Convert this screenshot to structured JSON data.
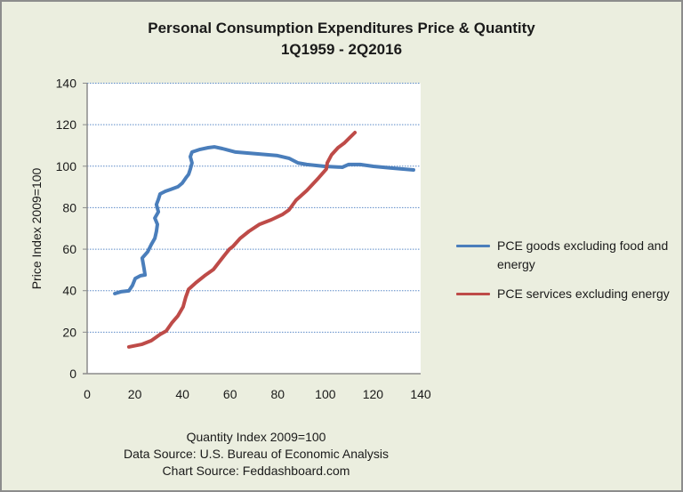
{
  "chart_data": {
    "type": "line",
    "title": "Personal Consumption  Expenditures Price & Quantity",
    "subtitle": "1Q1959 - 2Q2016",
    "xlabel": "Quantity Index 2009=100",
    "ylabel": "Price Index 2009=100",
    "xlim": [
      0,
      140
    ],
    "ylim": [
      0,
      140
    ],
    "x_ticks": [
      "0",
      "20",
      "40",
      "60",
      "80",
      "100",
      "120",
      "140"
    ],
    "y_ticks": [
      "0",
      "20",
      "40",
      "60",
      "80",
      "100",
      "120",
      "140"
    ],
    "grid": "horizontal-dotted",
    "legend_position": "right",
    "series": [
      {
        "name": "PCE goods excluding food and energy",
        "color": "#4a7ebb",
        "points": [
          [
            11.6,
            38.6
          ],
          [
            14.2,
            39.5
          ],
          [
            17.5,
            39.9
          ],
          [
            19.0,
            42.5
          ],
          [
            20.2,
            45.9
          ],
          [
            22.4,
            47.2
          ],
          [
            24.3,
            47.6
          ],
          [
            23.9,
            50.6
          ],
          [
            23.1,
            55.7
          ],
          [
            25.4,
            58.7
          ],
          [
            26.9,
            62.2
          ],
          [
            28.4,
            65.2
          ],
          [
            29.1,
            68.6
          ],
          [
            29.5,
            72.0
          ],
          [
            28.4,
            75.0
          ],
          [
            29.9,
            78.0
          ],
          [
            29.1,
            81.5
          ],
          [
            29.9,
            84.0
          ],
          [
            30.6,
            86.6
          ],
          [
            32.8,
            87.9
          ],
          [
            35.1,
            88.8
          ],
          [
            38.1,
            90.1
          ],
          [
            39.9,
            91.8
          ],
          [
            41.4,
            94.3
          ],
          [
            42.6,
            96.1
          ],
          [
            43.3,
            98.6
          ],
          [
            44.0,
            101.6
          ],
          [
            43.3,
            104.6
          ],
          [
            44.0,
            106.8
          ],
          [
            47.4,
            108.1
          ],
          [
            50.8,
            108.9
          ],
          [
            53.4,
            109.3
          ],
          [
            56.7,
            108.5
          ],
          [
            62.3,
            106.8
          ],
          [
            71.7,
            105.9
          ],
          [
            79.9,
            105.1
          ],
          [
            84.7,
            103.8
          ],
          [
            88.5,
            101.6
          ],
          [
            92.2,
            100.8
          ],
          [
            99.7,
            99.9
          ],
          [
            107.1,
            99.5
          ],
          [
            109.7,
            100.8
          ],
          [
            114.6,
            100.8
          ],
          [
            120.2,
            99.9
          ],
          [
            127.7,
            99.1
          ],
          [
            137.0,
            98.2
          ]
        ]
      },
      {
        "name": "PCE services excluding energy",
        "color": "#be4b48",
        "points": [
          [
            17.5,
            12.9
          ],
          [
            23.1,
            14.2
          ],
          [
            26.9,
            15.9
          ],
          [
            30.6,
            18.9
          ],
          [
            33.2,
            20.6
          ],
          [
            35.5,
            24.4
          ],
          [
            38.1,
            27.9
          ],
          [
            40.3,
            32.2
          ],
          [
            41.4,
            36.9
          ],
          [
            42.6,
            40.7
          ],
          [
            45.5,
            43.7
          ],
          [
            49.3,
            47.2
          ],
          [
            53.0,
            50.2
          ],
          [
            56.7,
            55.7
          ],
          [
            59.7,
            60.0
          ],
          [
            61.2,
            61.3
          ],
          [
            64.2,
            65.2
          ],
          [
            67.9,
            68.6
          ],
          [
            72.4,
            72.0
          ],
          [
            77.3,
            74.2
          ],
          [
            82.1,
            76.8
          ],
          [
            84.7,
            78.9
          ],
          [
            87.7,
            83.6
          ],
          [
            92.2,
            88.3
          ],
          [
            97.1,
            94.3
          ],
          [
            100.4,
            98.6
          ],
          [
            100.8,
            101.6
          ],
          [
            102.6,
            105.5
          ],
          [
            105.3,
            108.9
          ],
          [
            107.9,
            111.1
          ],
          [
            110.1,
            113.6
          ],
          [
            112.4,
            116.2
          ]
        ]
      }
    ],
    "legend": [
      {
        "label": "PCE goods excluding food and energy",
        "color": "#4a7ebb"
      },
      {
        "label": "PCE services excluding energy",
        "color": "#be4b48"
      }
    ],
    "notes": [
      "Quantity Index 2009=100",
      "Data Source: U.S. Bureau of Economic Analysis",
      "Chart Source: Feddashboard.com"
    ]
  }
}
